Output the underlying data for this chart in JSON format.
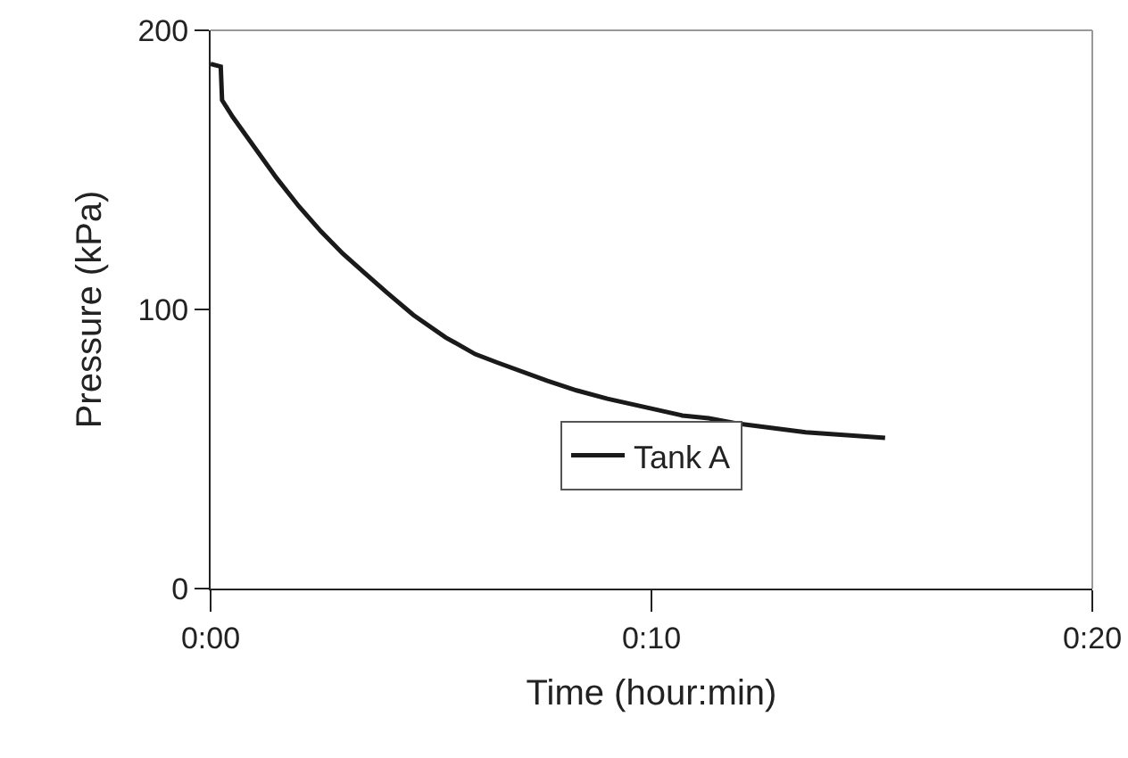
{
  "chart_data": {
    "type": "line",
    "xlabel": "Time (hour:min)",
    "ylabel": "Pressure (kPa)",
    "x": [
      0,
      0.23,
      0.26,
      0.5,
      1,
      1.5,
      2,
      2.5,
      3,
      3.5,
      4,
      4.6,
      5.33,
      6,
      6.5,
      7.63,
      8.3,
      9,
      10.7,
      11.3,
      12,
      13.5,
      15.3
    ],
    "series": [
      {
        "name": "Tank A",
        "color": "#1a1a1a",
        "values": [
          188,
          187,
          175,
          169,
          158,
          147,
          137,
          128,
          120,
          113,
          106,
          98,
          90,
          84,
          81,
          74.5,
          71,
          68,
          62,
          61,
          59,
          56,
          54
        ]
      }
    ],
    "xlim": [
      0,
      20
    ],
    "xticks": [
      {
        "value": 0,
        "label": "0:00"
      },
      {
        "value": 10,
        "label": "0:10"
      },
      {
        "value": 20,
        "label": "0:20"
      }
    ],
    "ylim": [
      0,
      200
    ],
    "yticks": [
      0,
      100,
      200
    ],
    "grid": false,
    "legend": "bottom",
    "marker": "none",
    "line_style": "solid"
  }
}
